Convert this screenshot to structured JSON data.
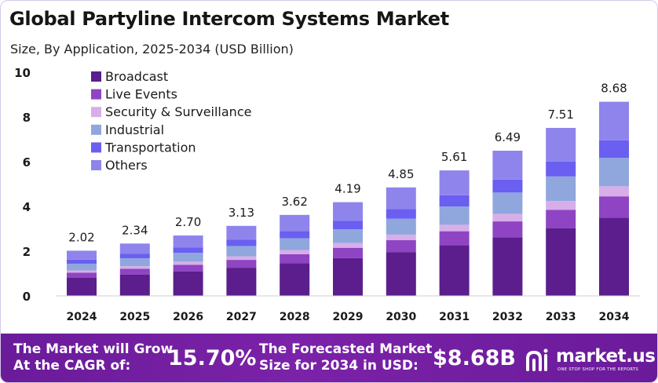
{
  "title": "Global Partyline Intercom Systems Market",
  "subtitle": "Size, By Application, 2025-2034 (USD Billion)",
  "footer": {
    "cagr_text_line1": "The Market will Grow",
    "cagr_text_line2": "At the CAGR of:",
    "cagr_value": "15.70%",
    "forecast_text_line1": "The Forecasted Market",
    "forecast_text_line2": "Size for 2034 in USD:",
    "forecast_value": "$8.68B",
    "brand": "market.us",
    "brand_tagline": "ONE STOP SHOP FOR THE REPORTS"
  },
  "colors": {
    "footer_bg": "#6a1b9a",
    "Broadcast": "#5b1e8c",
    "Live Events": "#8e44c3",
    "Security & Surveillance": "#d7aee8",
    "Industrial": "#8fa7dd",
    "Transportation": "#6a5ff0",
    "Others": "#8f84ec"
  },
  "chart_data": {
    "type": "bar",
    "stacked": true,
    "categories": [
      "2024",
      "2025",
      "2026",
      "2027",
      "2028",
      "2029",
      "2030",
      "2031",
      "2032",
      "2033",
      "2034"
    ],
    "totals": [
      2.02,
      2.34,
      2.7,
      3.13,
      3.62,
      4.19,
      4.85,
      5.61,
      6.49,
      7.51,
      8.68
    ],
    "total_labels": [
      "2.02",
      "2.34",
      "2.70",
      "3.13",
      "3.62",
      "4.19",
      "4.85",
      "5.61",
      "6.49",
      "7.51",
      "8.68"
    ],
    "series": [
      {
        "name": "Broadcast",
        "values": [
          0.82,
          0.95,
          1.09,
          1.26,
          1.46,
          1.69,
          1.96,
          2.27,
          2.62,
          3.03,
          3.5
        ]
      },
      {
        "name": "Live Events",
        "values": [
          0.22,
          0.26,
          0.3,
          0.35,
          0.4,
          0.46,
          0.53,
          0.62,
          0.71,
          0.82,
          0.95
        ]
      },
      {
        "name": "Security & Surveillance",
        "values": [
          0.1,
          0.12,
          0.14,
          0.16,
          0.19,
          0.22,
          0.25,
          0.29,
          0.34,
          0.39,
          0.45
        ]
      },
      {
        "name": "Industrial",
        "values": [
          0.3,
          0.35,
          0.4,
          0.46,
          0.53,
          0.61,
          0.71,
          0.82,
          0.95,
          1.1,
          1.27
        ]
      },
      {
        "name": "Transportation",
        "values": [
          0.18,
          0.21,
          0.24,
          0.28,
          0.32,
          0.37,
          0.43,
          0.5,
          0.58,
          0.67,
          0.78
        ]
      },
      {
        "name": "Others",
        "values": [
          0.4,
          0.45,
          0.53,
          0.62,
          0.72,
          0.84,
          0.97,
          1.11,
          1.29,
          1.5,
          1.73
        ]
      }
    ],
    "y_ticks": [
      0,
      2,
      4,
      6,
      8,
      10
    ],
    "ylim": [
      0,
      10
    ],
    "legend_position": "top-left",
    "grid": false
  }
}
